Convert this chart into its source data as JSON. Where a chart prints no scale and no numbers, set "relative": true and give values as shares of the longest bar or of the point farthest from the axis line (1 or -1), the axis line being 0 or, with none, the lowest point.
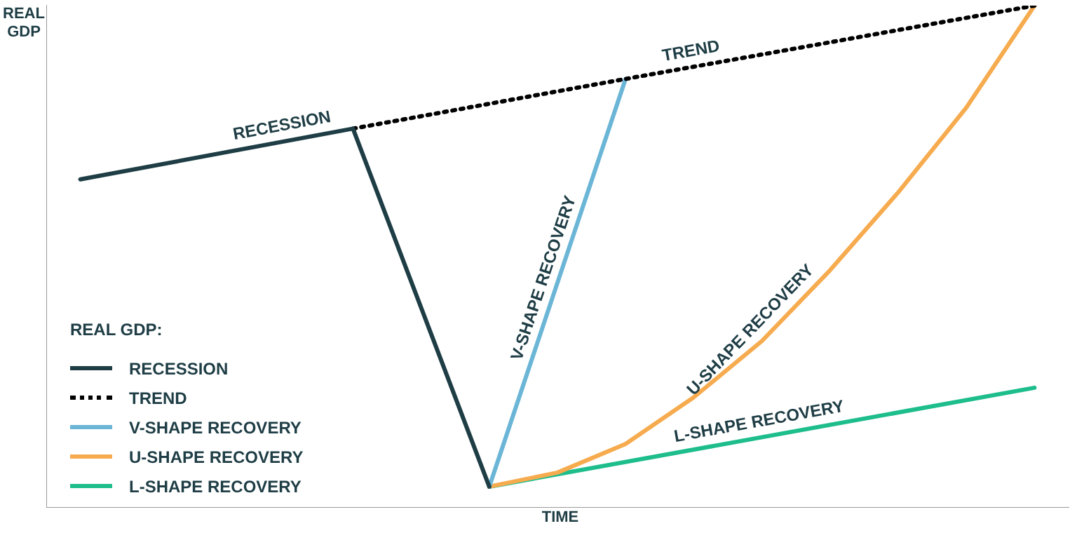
{
  "chart_data": {
    "type": "line",
    "relative": true,
    "xlabel": "TIME",
    "ylabel": "REAL GDP",
    "legend": "bottom left",
    "legend_title": "REAL GDP:",
    "categories": [
      null,
      null,
      null,
      null,
      null,
      null,
      null,
      null,
      null,
      null,
      null,
      null,
      null,
      null,
      null
    ],
    "series": [
      {
        "name": "RECESSION",
        "color": "#1e3d45",
        "line_style": "solid",
        "values": [
          0.654,
          null,
          null,
          null,
          0.755,
          null,
          0.042,
          null,
          null,
          null,
          null,
          null,
          null,
          null,
          null
        ]
      },
      {
        "name": "TREND",
        "color": "#000000",
        "line_style": "dotted",
        "values": [
          null,
          null,
          null,
          null,
          0.755,
          null,
          null,
          null,
          0.854,
          null,
          null,
          null,
          null,
          null,
          1.0
        ]
      },
      {
        "name": "V-SHAPE RECOVERY",
        "color": "#6bb5d6",
        "line_style": "solid",
        "values": [
          null,
          null,
          null,
          null,
          null,
          null,
          0.042,
          null,
          0.854,
          null,
          null,
          null,
          null,
          null,
          null
        ]
      },
      {
        "name": "U-SHAPE RECOVERY",
        "color": "#f7ab4f",
        "line_style": "solid",
        "values": [
          null,
          null,
          null,
          null,
          null,
          null,
          0.042,
          0.07,
          0.127,
          0.22,
          0.332,
          0.473,
          0.628,
          0.797,
          1.0
        ]
      },
      {
        "name": "L-SHAPE RECOVERY",
        "color": "#1dbd8c",
        "line_style": "solid",
        "values": [
          null,
          null,
          null,
          null,
          null,
          null,
          0.042,
          null,
          null,
          null,
          null,
          null,
          null,
          null,
          0.239
        ]
      }
    ]
  }
}
